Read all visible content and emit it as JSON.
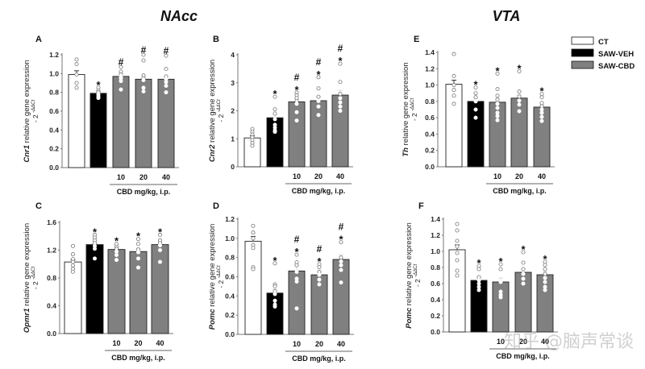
{
  "figure": {
    "region_titles": [
      "NAcc",
      "VTA"
    ],
    "legend": [
      {
        "label": "CT",
        "color": "#ffffff"
      },
      {
        "label": "SAW-VEH",
        "color": "#000000"
      },
      {
        "label": "SAW-CBD",
        "color": "#808080"
      }
    ],
    "x_group_label": "CBD mg/kg, i.p.",
    "doses": [
      "10",
      "20",
      "40"
    ],
    "watermark": "知乎 @脑声常谈"
  },
  "chart_data": [
    {
      "type": "bar",
      "panel": "A",
      "region": "NAcc",
      "gene": "Cnr1",
      "ylabel": "relative gene expression",
      "ysub": "- 2",
      "ysup": "-ΔΔCt",
      "categories": [
        "CT",
        "SAW-VEH",
        "SAW-CBD 10",
        "SAW-CBD 20",
        "SAW-CBD 40"
      ],
      "values": [
        0.99,
        0.79,
        0.97,
        0.94,
        0.94
      ],
      "sem": [
        0.04,
        0.02,
        0.03,
        0.04,
        0.03
      ],
      "points": [
        [
          1.15,
          1.1,
          0.99,
          0.9,
          0.85
        ],
        [
          0.85,
          0.82,
          0.8,
          0.78,
          0.76,
          0.74
        ],
        [
          1.07,
          1.02,
          0.99,
          0.97,
          0.95,
          0.92,
          0.83
        ],
        [
          1.2,
          1.14,
          0.98,
          0.95,
          0.93,
          0.85,
          0.81
        ],
        [
          1.19,
          1.05,
          0.97,
          0.94,
          0.91,
          0.87,
          0.8
        ]
      ],
      "significance": [
        "",
        "*",
        "#",
        "#",
        "#"
      ],
      "ylim": [
        0,
        1.2
      ],
      "yticks": [
        "0.0",
        "0.2",
        "0.4",
        "0.6",
        "0.8",
        "1.0",
        "1.2"
      ]
    },
    {
      "type": "bar",
      "panel": "B",
      "region": "NAcc",
      "gene": "Cnr2",
      "ylabel": "relative gene expression",
      "ysub": "- 2",
      "ysup": "-ΔΔCt",
      "categories": [
        "CT",
        "SAW-VEH",
        "SAW-CBD 10",
        "SAW-CBD 20",
        "SAW-CBD 40"
      ],
      "values": [
        1.03,
        1.75,
        2.32,
        2.36,
        2.56
      ],
      "sem": [
        0.07,
        0.12,
        0.12,
        0.14,
        0.17
      ],
      "points": [
        [
          1.35,
          1.25,
          1.15,
          1.05,
          0.95,
          0.85,
          0.75
        ],
        [
          2.5,
          2.05,
          1.9,
          1.7,
          1.5,
          1.4,
          1.3,
          1.25
        ],
        [
          2.65,
          2.55,
          2.45,
          2.35,
          2.25,
          1.95,
          1.65
        ],
        [
          3.2,
          2.8,
          2.5,
          2.35,
          2.15,
          1.85
        ],
        [
          3.68,
          3.03,
          2.6,
          2.45,
          2.3,
          2.15,
          2.0
        ]
      ],
      "significance": [
        "",
        "*",
        "#*",
        "#*",
        "#*"
      ],
      "ylim": [
        0,
        4
      ],
      "yticks": [
        "0",
        "1",
        "2",
        "3",
        "4"
      ]
    },
    {
      "type": "bar",
      "panel": "C",
      "region": "NAcc",
      "gene": "Opmr1",
      "ylabel": "relative gene expression",
      "ysub": "- 2",
      "ysup": "-ΔΔCt",
      "categories": [
        "CT",
        "SAW-VEH",
        "SAW-CBD 10",
        "SAW-CBD 20",
        "SAW-CBD 40"
      ],
      "values": [
        1.03,
        1.28,
        1.21,
        1.18,
        1.28
      ],
      "sem": [
        0.03,
        0.03,
        0.02,
        0.04,
        0.04
      ],
      "points": [
        [
          1.26,
          1.14,
          1.07,
          1.03,
          0.98,
          0.93,
          0.89
        ],
        [
          1.42,
          1.38,
          1.34,
          1.3,
          1.26,
          1.22,
          1.08
        ],
        [
          1.29,
          1.25,
          1.22,
          1.18,
          1.13,
          1.06
        ],
        [
          1.36,
          1.29,
          1.21,
          1.17,
          1.08,
          0.95
        ],
        [
          1.42,
          1.34,
          1.3,
          1.27,
          1.2,
          1.03
        ]
      ],
      "significance": [
        "",
        "*",
        "*",
        "*",
        "*"
      ],
      "ylim": [
        0,
        1.6
      ],
      "yticks": [
        "0.0",
        "0.4",
        "0.8",
        "1.2",
        "1.6"
      ]
    },
    {
      "type": "bar",
      "panel": "D",
      "region": "NAcc",
      "gene": "Pomc",
      "ylabel": "relative gene expression",
      "ysub": "- 2",
      "ysup": "-ΔΔCt",
      "categories": [
        "CT",
        "SAW-VEH",
        "SAW-CBD 10",
        "SAW-CBD 20",
        "SAW-CBD 40"
      ],
      "values": [
        0.97,
        0.43,
        0.66,
        0.62,
        0.78
      ],
      "sem": [
        0.05,
        0.04,
        0.06,
        0.03,
        0.05
      ],
      "points": [
        [
          1.13,
          1.06,
          1.0,
          0.93,
          0.9,
          0.7,
          0.68
        ],
        [
          0.74,
          0.52,
          0.5,
          0.45,
          0.42,
          0.35,
          0.31,
          0.29
        ],
        [
          0.83,
          0.75,
          0.72,
          0.65,
          0.58,
          0.55,
          0.27
        ],
        [
          0.73,
          0.7,
          0.65,
          0.62,
          0.57,
          0.52
        ],
        [
          0.96,
          0.8,
          0.76,
          0.72,
          0.67,
          0.54
        ]
      ],
      "significance": [
        "",
        "*",
        "#*",
        "#*",
        "#*"
      ],
      "ylim": [
        0,
        1.2
      ],
      "yticks": [
        "0.0",
        "0.2",
        "0.4",
        "0.6",
        "0.8",
        "1.0",
        "1.2"
      ]
    },
    {
      "type": "bar",
      "panel": "E",
      "region": "VTA",
      "gene": "Th",
      "ylabel": "relative gene expression",
      "ysub": "- 2",
      "ysup": "-ΔΔCt",
      "categories": [
        "CT",
        "SAW-VEH",
        "SAW-CBD 10",
        "SAW-CBD 20",
        "SAW-CBD 40"
      ],
      "values": [
        1.01,
        0.8,
        0.79,
        0.84,
        0.73
      ],
      "sem": [
        0.05,
        0.04,
        0.05,
        0.04,
        0.03
      ],
      "points": [
        [
          1.38,
          1.11,
          1.0,
          0.94,
          0.87,
          0.77
        ],
        [
          0.97,
          0.9,
          0.85,
          0.8,
          0.7,
          0.6
        ],
        [
          1.14,
          0.95,
          0.87,
          0.82,
          0.77,
          0.72,
          0.66,
          0.62,
          0.57
        ],
        [
          1.17,
          0.92,
          0.86,
          0.81,
          0.76,
          0.68
        ],
        [
          0.89,
          0.85,
          0.78,
          0.74,
          0.7,
          0.66,
          0.61,
          0.56
        ]
      ],
      "significance": [
        "",
        "*",
        "*",
        "*",
        "*"
      ],
      "ylim": [
        0,
        1.4
      ],
      "yticks": [
        "0.0",
        "0.2",
        "0.4",
        "0.6",
        "0.8",
        "1.0",
        "1.2",
        "1.4"
      ]
    },
    {
      "type": "bar",
      "panel": "F",
      "region": "VTA",
      "gene": "Pomc",
      "ylabel": "relative gene expression",
      "ysub": "- 2",
      "ysup": "-ΔΔCt",
      "categories": [
        "CT",
        "SAW-VEH",
        "SAW-CBD 10",
        "SAW-CBD 20",
        "SAW-CBD 40"
      ],
      "values": [
        1.02,
        0.64,
        0.62,
        0.74,
        0.71
      ],
      "sem": [
        0.06,
        0.03,
        0.05,
        0.04,
        0.04
      ],
      "points": [
        [
          1.34,
          1.26,
          1.13,
          1.06,
          0.98,
          0.89,
          0.76,
          0.7
        ],
        [
          0.82,
          0.78,
          0.68,
          0.64,
          0.6,
          0.56,
          0.52
        ],
        [
          0.84,
          0.78,
          0.62,
          0.5,
          0.46,
          0.43
        ],
        [
          0.99,
          0.86,
          0.78,
          0.72,
          0.66,
          0.6
        ],
        [
          0.87,
          0.83,
          0.78,
          0.72,
          0.67,
          0.62,
          0.56,
          0.52
        ]
      ],
      "significance": [
        "",
        "*",
        "*",
        "*",
        "*"
      ],
      "ylim": [
        0,
        1.4
      ],
      "yticks": [
        "0.0",
        "0.2",
        "0.4",
        "0.6",
        "0.8",
        "1.0",
        "1.2",
        "1.4"
      ]
    }
  ]
}
